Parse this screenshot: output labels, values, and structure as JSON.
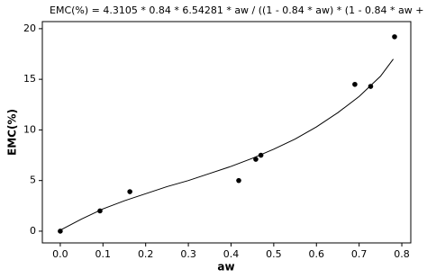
{
  "chart_data": {
    "type": "scatter",
    "title": "EMC(%) = 4.3105 * 0.84 * 6.54281 * aw / ((1 - 0.84 * aw) * (1 - 0.84 * aw + ...",
    "xlabel": "aw",
    "ylabel": "EMC(%)",
    "xlim": [
      -0.042,
      0.821
    ],
    "ylim": [
      -1.16,
      20.7
    ],
    "xticks": [
      {
        "value": 0,
        "label": "0.0"
      },
      0.1,
      0.2,
      0.3,
      0.4,
      0.5,
      0.6,
      0.7,
      0.8
    ],
    "yticks": [
      0,
      5,
      10,
      15,
      20
    ],
    "series": [
      {
        "type": "scatter",
        "color": "#000000",
        "x": [
          0,
          0.093,
          0.163,
          0.418,
          0.458,
          0.47,
          0.69,
          0.727,
          0.783
        ],
        "values": [
          0,
          2.0,
          3.9,
          5.0,
          7.1,
          7.5,
          14.5,
          14.3,
          19.2
        ]
      },
      {
        "type": "line",
        "color": "#000000",
        "x": [
          0,
          0.05,
          0.1,
          0.15,
          0.2,
          0.25,
          0.3,
          0.35,
          0.4,
          0.45,
          0.5,
          0.55,
          0.6,
          0.65,
          0.7,
          0.75,
          0.78
        ],
        "values": [
          0.1,
          1.2,
          2.2,
          3.0,
          3.7,
          4.4,
          5.0,
          5.7,
          6.4,
          7.2,
          8.1,
          9.1,
          10.3,
          11.7,
          13.3,
          15.3,
          17.0
        ]
      }
    ]
  }
}
